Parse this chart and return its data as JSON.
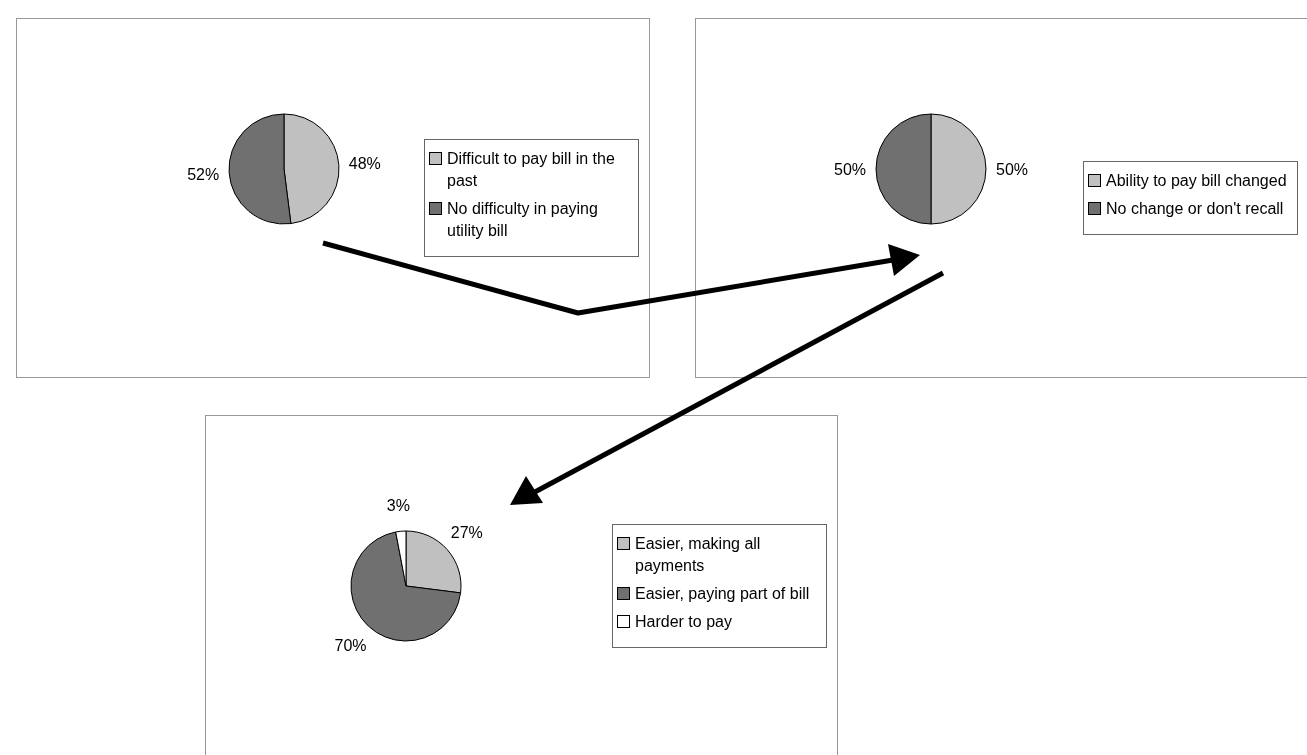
{
  "chart_data": [
    {
      "type": "pie",
      "categories": [
        "Difficult to pay bill in the past",
        "No difficulty in paying utility bill"
      ],
      "values": [
        48,
        52
      ],
      "colors": [
        "#c0c0c0",
        "#707070"
      ],
      "value_labels": [
        "48%",
        "52%"
      ],
      "legend": "right"
    },
    {
      "type": "pie",
      "categories": [
        "Ability to pay bill changed",
        "No change or don't recall"
      ],
      "values": [
        50,
        50
      ],
      "colors": [
        "#c0c0c0",
        "#707070"
      ],
      "value_labels": [
        "50%",
        "50%"
      ],
      "legend": "right"
    },
    {
      "type": "pie",
      "categories": [
        "Easier, making all payments",
        "Easier, paying part of bill",
        "Harder to pay"
      ],
      "values": [
        27,
        70,
        3
      ],
      "colors": [
        "#c0c0c0",
        "#707070",
        "#ffffff"
      ],
      "value_labels": [
        "27%",
        "70%",
        "3%"
      ],
      "legend": "right"
    }
  ]
}
